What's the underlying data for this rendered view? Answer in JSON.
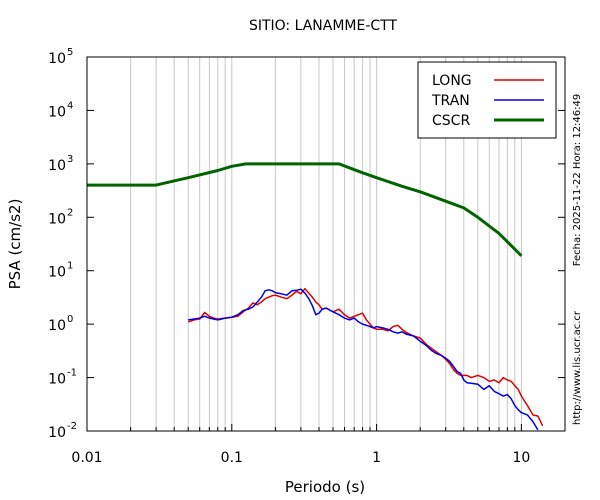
{
  "chart_data": {
    "type": "line",
    "title": "SITIO: LANAMME-CTT",
    "xlabel": "Periodo (s)",
    "ylabel": "PSA (cm/s2)",
    "xscale": "log",
    "yscale": "log",
    "xlim": [
      0.01,
      20
    ],
    "ylim": [
      0.01,
      100000
    ],
    "grid": {
      "x_minor": true,
      "y": false
    },
    "x_ticks": [
      {
        "value": 0.01,
        "label": "0.01"
      },
      {
        "value": 0.1,
        "label": "0.1"
      },
      {
        "value": 1,
        "label": "1"
      },
      {
        "value": 10,
        "label": "10"
      }
    ],
    "y_ticks": [
      {
        "value": 0.01,
        "base": "10",
        "exp": "-2"
      },
      {
        "value": 0.1,
        "base": "10",
        "exp": "-1"
      },
      {
        "value": 1,
        "base": "10",
        "exp": "0"
      },
      {
        "value": 10,
        "base": "10",
        "exp": "1"
      },
      {
        "value": 100,
        "base": "10",
        "exp": "2"
      },
      {
        "value": 1000,
        "base": "10",
        "exp": "3"
      },
      {
        "value": 10000,
        "base": "10",
        "exp": "4"
      },
      {
        "value": 100000,
        "base": "10",
        "exp": "5"
      }
    ],
    "legend_position": "top-right",
    "series": [
      {
        "name": "LONG",
        "color": "#e00000",
        "x": [
          0.05,
          0.055,
          0.06,
          0.065,
          0.07,
          0.075,
          0.08,
          0.09,
          0.1,
          0.11,
          0.12,
          0.13,
          0.14,
          0.15,
          0.16,
          0.17,
          0.18,
          0.19,
          0.2,
          0.22,
          0.24,
          0.26,
          0.28,
          0.3,
          0.32,
          0.34,
          0.36,
          0.38,
          0.4,
          0.42,
          0.45,
          0.48,
          0.5,
          0.55,
          0.6,
          0.65,
          0.7,
          0.75,
          0.8,
          0.85,
          0.9,
          0.95,
          1.0,
          1.1,
          1.2,
          1.3,
          1.4,
          1.5,
          1.6,
          1.8,
          2.0,
          2.2,
          2.4,
          2.6,
          2.8,
          3.0,
          3.2,
          3.4,
          3.6,
          3.8,
          4.0,
          4.2,
          4.5,
          5.0,
          5.5,
          6.0,
          6.5,
          7.0,
          7.5,
          8.0,
          8.5,
          9.0,
          9.5,
          10,
          11,
          12,
          13,
          14
        ],
        "y": [
          1.1,
          1.2,
          1.25,
          1.65,
          1.4,
          1.3,
          1.25,
          1.3,
          1.35,
          1.4,
          1.7,
          2.0,
          2.5,
          2.3,
          2.6,
          3.0,
          3.2,
          3.4,
          3.5,
          3.2,
          3.0,
          3.5,
          4.1,
          3.7,
          4.6,
          3.8,
          3.2,
          2.6,
          2.3,
          1.9,
          2.0,
          1.8,
          1.7,
          1.9,
          1.5,
          1.3,
          1.4,
          1.5,
          1.6,
          1.2,
          1.0,
          0.85,
          0.8,
          0.8,
          0.75,
          0.9,
          0.95,
          0.8,
          0.7,
          0.6,
          0.55,
          0.42,
          0.35,
          0.3,
          0.26,
          0.22,
          0.18,
          0.14,
          0.12,
          0.11,
          0.11,
          0.11,
          0.1,
          0.11,
          0.1,
          0.085,
          0.09,
          0.08,
          0.1,
          0.09,
          0.085,
          0.07,
          0.06,
          0.045,
          0.03,
          0.02,
          0.019,
          0.0125
        ]
      },
      {
        "name": "TRAN",
        "color": "#0000e0",
        "x": [
          0.05,
          0.055,
          0.06,
          0.065,
          0.07,
          0.075,
          0.08,
          0.09,
          0.1,
          0.11,
          0.12,
          0.13,
          0.14,
          0.15,
          0.16,
          0.17,
          0.18,
          0.19,
          0.2,
          0.22,
          0.24,
          0.26,
          0.28,
          0.3,
          0.32,
          0.34,
          0.36,
          0.38,
          0.4,
          0.42,
          0.45,
          0.48,
          0.5,
          0.55,
          0.6,
          0.65,
          0.7,
          0.75,
          0.8,
          0.85,
          0.9,
          0.95,
          1.0,
          1.1,
          1.2,
          1.3,
          1.4,
          1.5,
          1.6,
          1.8,
          2.0,
          2.2,
          2.4,
          2.6,
          2.8,
          3.0,
          3.2,
          3.4,
          3.6,
          3.8,
          4.0,
          4.2,
          4.5,
          5.0,
          5.5,
          6.0,
          6.5,
          7.0,
          7.5,
          8.0,
          8.5,
          9.0,
          9.5,
          10,
          11,
          12,
          13
        ],
        "y": [
          1.2,
          1.25,
          1.3,
          1.4,
          1.3,
          1.25,
          1.2,
          1.3,
          1.35,
          1.5,
          1.8,
          1.9,
          2.1,
          2.6,
          3.2,
          4.2,
          4.4,
          4.2,
          3.9,
          3.7,
          3.5,
          4.2,
          4.3,
          4.5,
          3.8,
          3.0,
          2.2,
          1.5,
          1.6,
          1.9,
          2.0,
          1.8,
          1.7,
          1.5,
          1.3,
          1.2,
          1.3,
          1.1,
          1.0,
          0.95,
          0.9,
          0.85,
          0.9,
          0.85,
          0.8,
          0.72,
          0.68,
          0.72,
          0.65,
          0.6,
          0.48,
          0.4,
          0.32,
          0.28,
          0.26,
          0.23,
          0.2,
          0.16,
          0.13,
          0.12,
          0.09,
          0.08,
          0.078,
          0.075,
          0.06,
          0.07,
          0.055,
          0.05,
          0.045,
          0.048,
          0.04,
          0.03,
          0.025,
          0.022,
          0.02,
          0.015,
          0.0105
        ]
      },
      {
        "name": "CSCR",
        "color": "#006400",
        "x": [
          0.01,
          0.03,
          0.05,
          0.08,
          0.1,
          0.125,
          0.2,
          0.3,
          0.55,
          0.8,
          1.0,
          1.5,
          2.0,
          3.0,
          4.0,
          5.0,
          7.0,
          10
        ],
        "y": [
          400,
          400,
          550,
          750,
          900,
          1000,
          1000,
          1000,
          1000,
          680,
          550,
          380,
          300,
          200,
          150,
          100,
          50,
          19
        ]
      }
    ],
    "side_text": {
      "right_top": "Fecha: 2025-11-22 Hora: 12:46:49",
      "right_bottom": "http://www.lis.ucr.ac.cr"
    }
  }
}
